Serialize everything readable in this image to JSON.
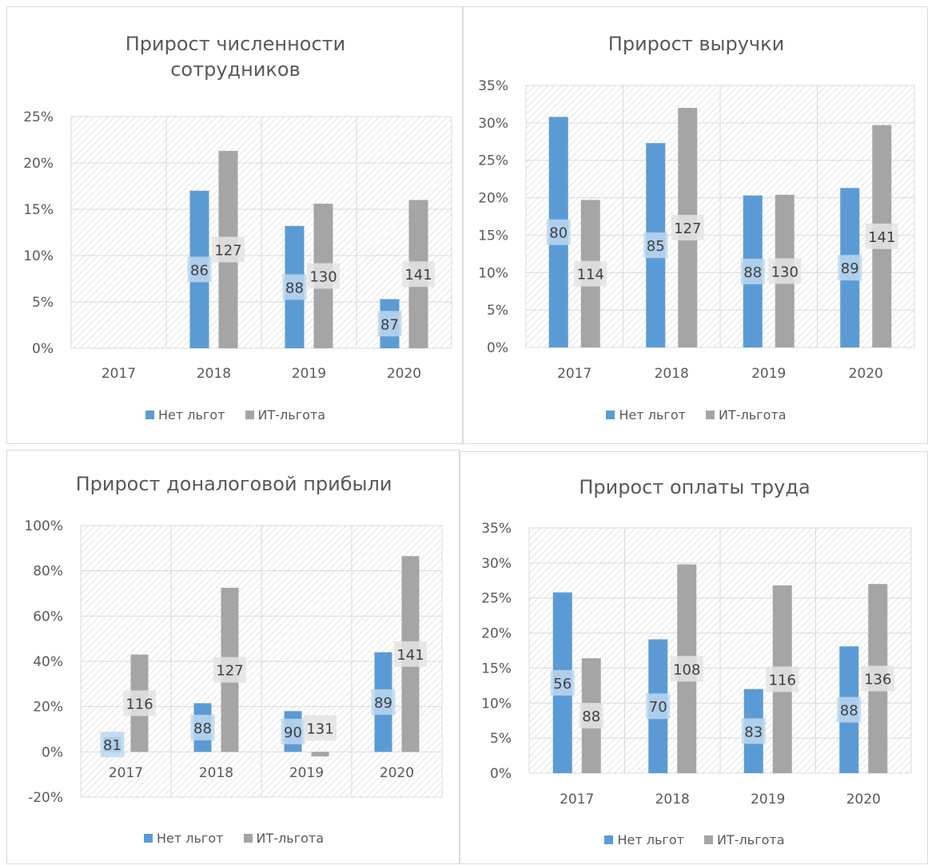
{
  "colors": {
    "series_1": "#5b9bd5",
    "series_2": "#a5a5a5",
    "grid": "#d9d9d9",
    "text": "#595959"
  },
  "legend_placement": "bottom",
  "chart_data": [
    {
      "type": "bar",
      "title_lines": [
        "Прирост численности",
        "сотрудников"
      ],
      "categories": [
        "2017",
        "2018",
        "2019",
        "2020"
      ],
      "ylim": [
        0,
        25
      ],
      "yticks": [
        0,
        5,
        10,
        15,
        20,
        25
      ],
      "ytick_labels": [
        "0%",
        "5%",
        "10%",
        "15%",
        "20%",
        "25%"
      ],
      "grid": true,
      "series": [
        {
          "name": "Нет льгот",
          "values": [
            null,
            17,
            13.2,
            5.3
          ],
          "labels": [
            "",
            "86",
            "88",
            "87"
          ]
        },
        {
          "name": "ИТ-льгота",
          "values": [
            null,
            21.3,
            15.6,
            16
          ],
          "labels": [
            "",
            "127",
            "130",
            "141"
          ]
        }
      ]
    },
    {
      "type": "bar",
      "title_lines": [
        "Прирост выручки"
      ],
      "categories": [
        "2017",
        "2018",
        "2019",
        "2020"
      ],
      "ylim": [
        0,
        35
      ],
      "yticks": [
        0,
        5,
        10,
        15,
        20,
        25,
        30,
        35
      ],
      "ytick_labels": [
        "0%",
        "5%",
        "10%",
        "15%",
        "20%",
        "25%",
        "30%",
        "35%"
      ],
      "grid": true,
      "series": [
        {
          "name": "Нет льгот",
          "values": [
            30.8,
            27.3,
            20.3,
            21.3
          ],
          "labels": [
            "80",
            "85",
            "88",
            "89"
          ]
        },
        {
          "name": "ИТ-льгота",
          "values": [
            19.7,
            32,
            20.4,
            29.7
          ],
          "labels": [
            "114",
            "127",
            "130",
            "141"
          ]
        }
      ]
    },
    {
      "type": "bar",
      "title_lines": [
        "Прирост доналоговой прибыли"
      ],
      "categories": [
        "2017",
        "2018",
        "2019",
        "2020"
      ],
      "ylim": [
        -20,
        100
      ],
      "yticks": [
        -20,
        0,
        20,
        40,
        60,
        80,
        100
      ],
      "ytick_labels": [
        "-20%",
        "0%",
        "20%",
        "40%",
        "60%",
        "80%",
        "100%"
      ],
      "grid": true,
      "series": [
        {
          "name": "Нет льгот",
          "values": [
            6.5,
            21.5,
            18,
            44
          ],
          "labels": [
            "81",
            "88",
            "90",
            "89"
          ]
        },
        {
          "name": "ИТ-льгота",
          "values": [
            43,
            72.5,
            -2,
            86.5
          ],
          "labels": [
            "116",
            "127",
            "131",
            "141"
          ]
        }
      ]
    },
    {
      "type": "bar",
      "title_lines": [
        "Прирост оплаты труда"
      ],
      "categories": [
        "2017",
        "2018",
        "2019",
        "2020"
      ],
      "ylim": [
        0,
        35
      ],
      "yticks": [
        0,
        5,
        10,
        15,
        20,
        25,
        30,
        35
      ],
      "ytick_labels": [
        "0%",
        "5%",
        "10%",
        "15%",
        "20%",
        "25%",
        "30%",
        "35%"
      ],
      "grid": true,
      "series": [
        {
          "name": "Нет льгот",
          "values": [
            25.8,
            19.1,
            12,
            18.1
          ],
          "labels": [
            "56",
            "70",
            "83",
            "88"
          ]
        },
        {
          "name": "ИТ-льгота",
          "values": [
            16.4,
            29.8,
            26.8,
            27
          ],
          "labels": [
            "88",
            "108",
            "116",
            "136"
          ]
        }
      ]
    }
  ]
}
